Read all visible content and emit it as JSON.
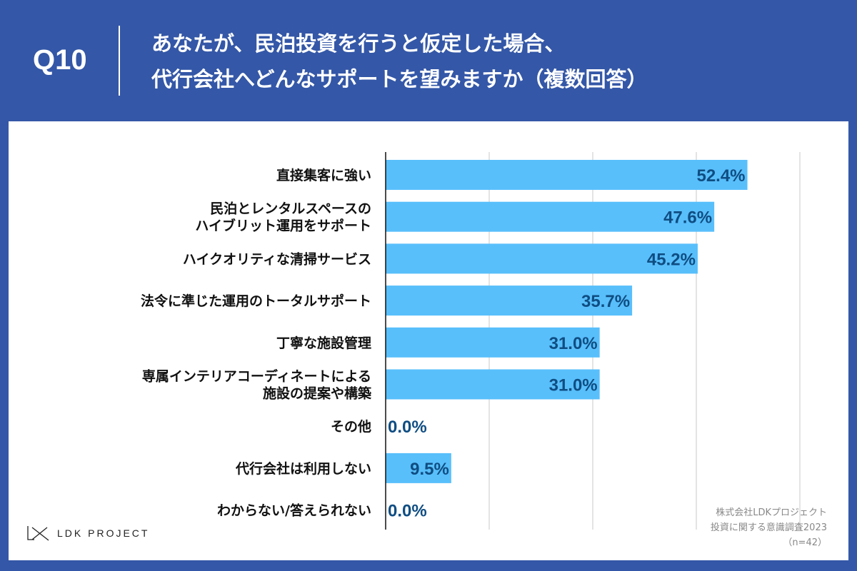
{
  "header": {
    "question_number": "Q10",
    "title_line1": "あなたが、民泊投資を行うと仮定した場合、",
    "title_line2": "代行会社へどんなサポートを望みますか（複数回答）"
  },
  "footer": {
    "logo_text": "LDK PROJECT",
    "source_line1": "株式会社LDKプロジェクト",
    "source_line2": "投資に関する意識調査2023",
    "source_line3": "（n=42）"
  },
  "colors": {
    "background": "#3457a7",
    "bar": "#58bffb",
    "value_label": "#0f4d82"
  },
  "chart_data": {
    "type": "bar",
    "orientation": "horizontal",
    "categories": [
      [
        "直接集客に強い"
      ],
      [
        "民泊とレンタルスペースの",
        "ハイブリット運用をサポート"
      ],
      [
        "ハイクオリティな清掃サービス"
      ],
      [
        "法令に準じた運用のトータルサポート"
      ],
      [
        "丁寧な施設管理"
      ],
      [
        "専属インテリアコーディネートによる",
        "施設の提案や構築"
      ],
      [
        "その他"
      ],
      [
        "代行会社は利用しない"
      ],
      [
        "わからない/答えられない"
      ]
    ],
    "values": [
      52.4,
      47.6,
      45.2,
      35.7,
      31.0,
      31.0,
      0.0,
      9.5,
      0.0
    ],
    "value_labels": [
      "52.4%",
      "47.6%",
      "45.2%",
      "35.7%",
      "31.0%",
      "31.0%",
      "0.0%",
      "9.5%",
      "0.0%"
    ],
    "xlim": [
      0,
      60
    ],
    "grid_interval": 15,
    "grid": true,
    "unit": "%"
  }
}
